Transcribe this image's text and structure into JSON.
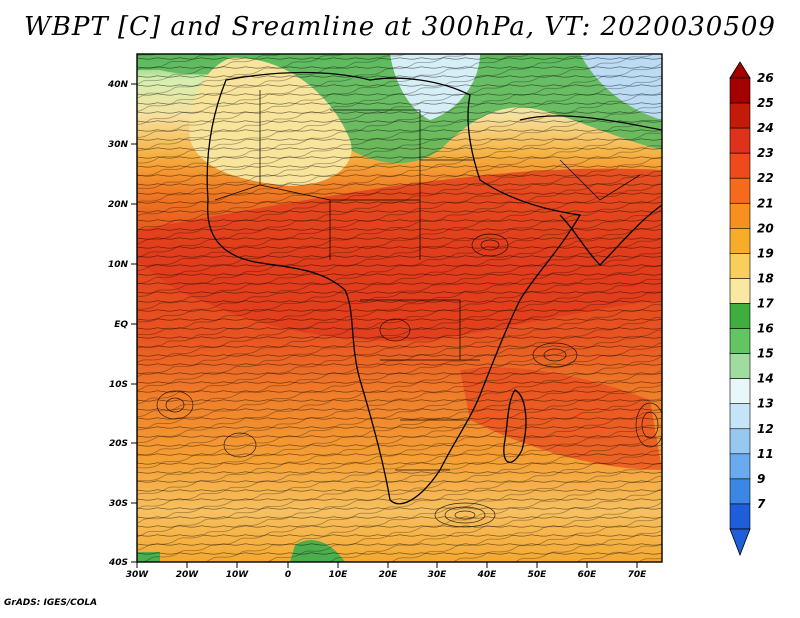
{
  "title": "WBPT [C] and Sreamline at 300hPa, VT: 2020030509",
  "credit": "GrADS: IGES/COLA",
  "map": {
    "lat_labels": [
      "40N",
      "30N",
      "20N",
      "10N",
      "EQ",
      "10S",
      "20S",
      "30S",
      "40S"
    ],
    "lon_labels": [
      "30W",
      "20W",
      "10W",
      "0",
      "10E",
      "20E",
      "30E",
      "40E",
      "50E",
      "60E",
      "70E"
    ]
  },
  "colorbar": {
    "labels": [
      "26",
      "25",
      "24",
      "23",
      "22",
      "21",
      "20",
      "19",
      "18",
      "17",
      "16",
      "15",
      "14",
      "13",
      "12",
      "11",
      "9",
      "7"
    ],
    "colors": [
      "#a50000",
      "#c41a0a",
      "#e0321a",
      "#ef4a1c",
      "#f56a1c",
      "#f7901e",
      "#f7ad2a",
      "#f8cf5a",
      "#f8e8a0",
      "#3fae3f",
      "#63c463",
      "#a0dca0",
      "#e8f8f8",
      "#c6e4f8",
      "#96c8f0",
      "#6aaaf0",
      "#3c86e6",
      "#1e5ed8"
    ]
  }
}
